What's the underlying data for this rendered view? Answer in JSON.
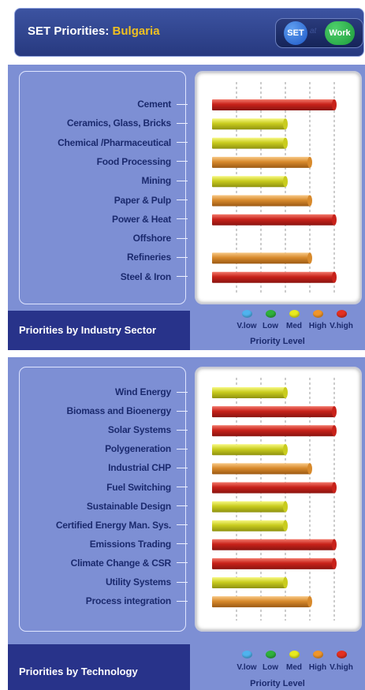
{
  "header": {
    "title_prefix": "SET Priorities: ",
    "country": "Bulgaria",
    "logo": {
      "left": "SET",
      "middle": "at",
      "right": "Work"
    }
  },
  "legend": {
    "levels": [
      "V.low",
      "Low",
      "Med",
      "High",
      "V.high"
    ],
    "colors": {
      "V.low": "#4fb3ee",
      "Low": "#2fb13c",
      "Med": "#e8ea1e",
      "High": "#f0962a",
      "V.high": "#e43020"
    },
    "title": "Priority Level"
  },
  "chart_data": [
    {
      "type": "bar",
      "title": "Priorities by Industry Sector",
      "xlabel": "Priority Level",
      "categories": [
        "Cement",
        "Ceramics, Glass, Bricks",
        "Chemical /Pharmaceutical",
        "Food Processing",
        "Mining",
        "Paper & Pulp",
        "Power & Heat",
        "Offshore",
        "Refineries",
        "Steel & Iron"
      ],
      "values": [
        "V.high",
        "Med",
        "Med",
        "High",
        "Med",
        "High",
        "V.high",
        null,
        "High",
        "V.high"
      ],
      "scale": [
        "V.low",
        "Low",
        "Med",
        "High",
        "V.high"
      ],
      "grid": true
    },
    {
      "type": "bar",
      "title": "Priorities by Technology",
      "xlabel": "Priority Level",
      "categories": [
        "Wind Energy",
        "Biomass and Bioenergy",
        "Solar Systems",
        "Polygeneration",
        "Industrial CHP",
        "Fuel Switching",
        "Sustainable Design",
        "Certified Energy Man. Sys.",
        "Emissions Trading",
        "Climate Change & CSR",
        "Utility Systems",
        "Process integration"
      ],
      "values": [
        "Med",
        "V.high",
        "V.high",
        "Med",
        "High",
        "V.high",
        "Med",
        "Med",
        "V.high",
        "V.high",
        "Med",
        "High"
      ],
      "scale": [
        "V.low",
        "Low",
        "Med",
        "High",
        "V.high"
      ],
      "grid": true
    }
  ]
}
